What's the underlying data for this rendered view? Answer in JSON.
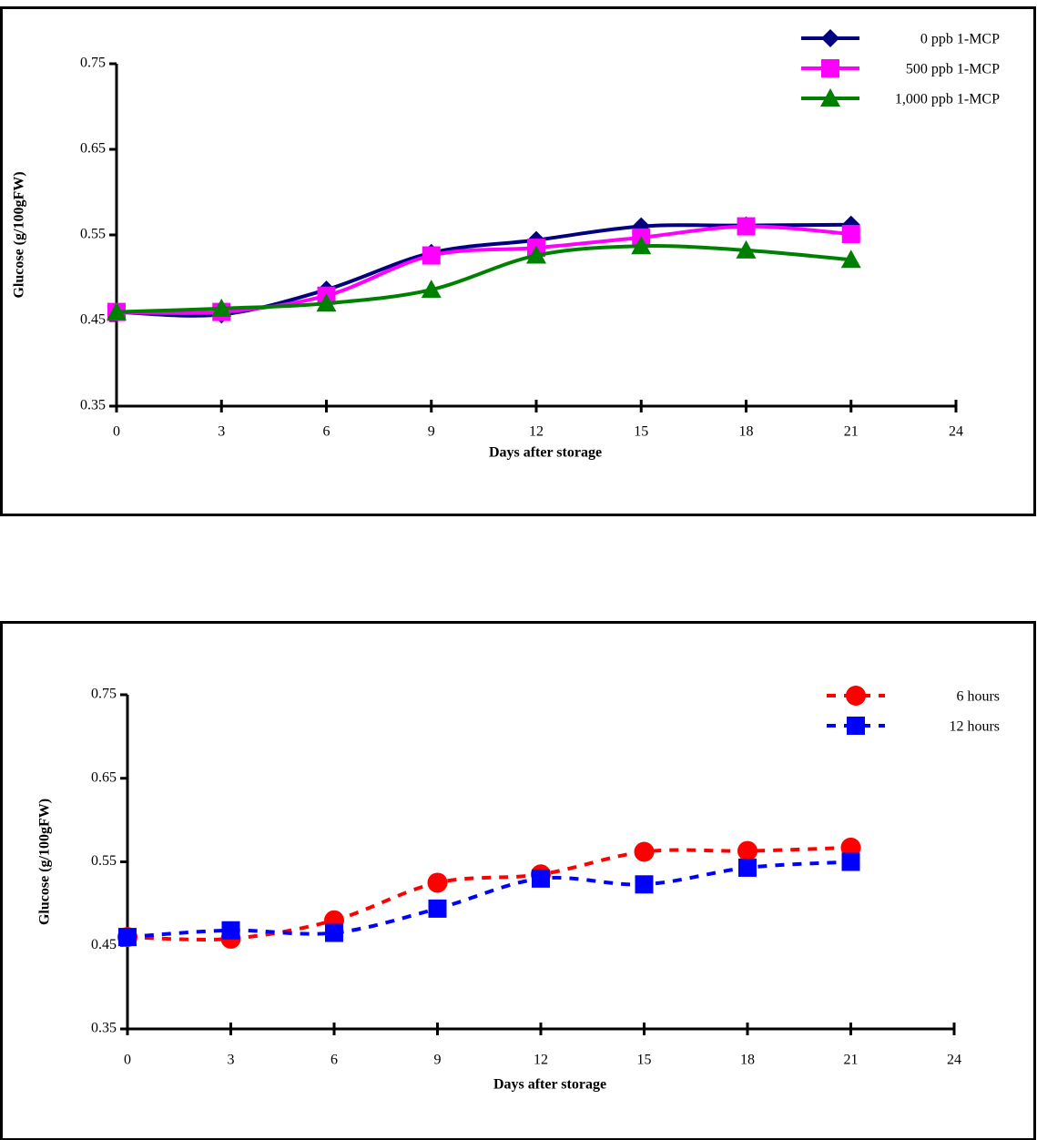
{
  "chart_data": [
    {
      "type": "line",
      "y_label": "Glucose (g/100gFW)",
      "x_label": "Days after storage",
      "x": [
        0,
        3,
        6,
        9,
        12,
        15,
        18,
        21
      ],
      "xlim": [
        0,
        24
      ],
      "xticks": [
        0,
        3,
        6,
        9,
        12,
        15,
        18,
        21,
        24
      ],
      "ylim": [
        0.35,
        0.75
      ],
      "yticks": [
        0.35,
        0.45,
        0.55,
        0.65,
        0.75
      ],
      "line_style": "solid",
      "smooth": true,
      "series": [
        {
          "name": "0 ppb 1-MCP",
          "color": "#000080",
          "marker": "diamond",
          "values": [
            0.46,
            0.457,
            0.486,
            0.529,
            0.544,
            0.56,
            0.561,
            0.562
          ]
        },
        {
          "name": "500 ppb 1-MCP",
          "color": "#ff00ff",
          "marker": "square",
          "values": [
            0.46,
            0.46,
            0.479,
            0.526,
            0.535,
            0.547,
            0.56,
            0.551
          ]
        },
        {
          "name": "1,000 ppb 1-MCP",
          "color": "#008000",
          "marker": "triangle",
          "values": [
            0.46,
            0.464,
            0.47,
            0.486,
            0.526,
            0.537,
            0.532,
            0.521
          ]
        }
      ]
    },
    {
      "type": "line",
      "y_label": "Glucose (g/100gFW)",
      "x_label": "Days after storage",
      "x": [
        0,
        3,
        6,
        9,
        12,
        15,
        18,
        21
      ],
      "xlim": [
        0,
        24
      ],
      "xticks": [
        0,
        3,
        6,
        9,
        12,
        15,
        18,
        21,
        24
      ],
      "ylim": [
        0.35,
        0.75
      ],
      "yticks": [
        0.35,
        0.45,
        0.55,
        0.65,
        0.75
      ],
      "line_style": "dashed",
      "smooth": true,
      "series": [
        {
          "name": "6 hours",
          "color": "#ff0000",
          "marker": "circle",
          "values": [
            0.46,
            0.458,
            0.48,
            0.525,
            0.535,
            0.562,
            0.563,
            0.567
          ]
        },
        {
          "name": "12 hours",
          "color": "#0000ff",
          "marker": "square",
          "values": [
            0.46,
            0.468,
            0.465,
            0.494,
            0.53,
            0.523,
            0.543,
            0.55
          ]
        }
      ]
    }
  ]
}
